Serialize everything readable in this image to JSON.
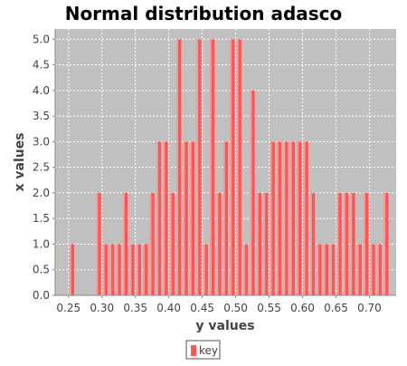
{
  "chart_data": {
    "type": "bar",
    "title": "Normal distribution adasco",
    "xlabel": "y values",
    "ylabel": "x values",
    "xlim": [
      0.23,
      0.74
    ],
    "ylim": [
      0,
      5.2
    ],
    "xticks": [
      "0.25",
      "0.30",
      "0.35",
      "0.40",
      "0.45",
      "0.50",
      "0.55",
      "0.60",
      "0.65",
      "0.70"
    ],
    "yticks": [
      "0.0",
      "0.5",
      "1.0",
      "1.5",
      "2.0",
      "2.5",
      "3.0",
      "3.5",
      "4.0",
      "4.5",
      "5.0"
    ],
    "grid": true,
    "legend_placement": "bottom",
    "bar_width": 0.007,
    "series": [
      {
        "name": "key",
        "color": "#ff5555",
        "x": [
          0.255,
          0.295,
          0.305,
          0.315,
          0.325,
          0.335,
          0.345,
          0.355,
          0.365,
          0.375,
          0.385,
          0.395,
          0.405,
          0.415,
          0.425,
          0.435,
          0.445,
          0.455,
          0.465,
          0.475,
          0.485,
          0.495,
          0.505,
          0.515,
          0.525,
          0.535,
          0.545,
          0.555,
          0.565,
          0.575,
          0.585,
          0.595,
          0.605,
          0.615,
          0.625,
          0.635,
          0.645,
          0.655,
          0.665,
          0.675,
          0.685,
          0.695,
          0.705,
          0.715,
          0.725
        ],
        "y": [
          1,
          2,
          1,
          1,
          1,
          2,
          1,
          1,
          1,
          2,
          3,
          3,
          2,
          5,
          3,
          3,
          5,
          1,
          5,
          2,
          3,
          5,
          5,
          1,
          4,
          2,
          2,
          3,
          3,
          3,
          3,
          3,
          3,
          2,
          1,
          1,
          1,
          2,
          2,
          2,
          1,
          2,
          1,
          1,
          2
        ]
      }
    ]
  }
}
